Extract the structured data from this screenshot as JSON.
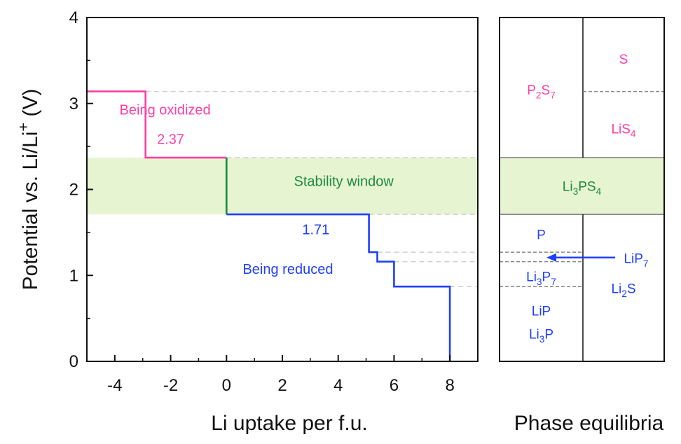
{
  "colors": {
    "oxidized": "#ff3fa4",
    "reduced": "#1f3fff",
    "stability": "#1b8a3e",
    "window_fill": "#e7f4d2",
    "guide_dash": "#cfcfcf",
    "phase_dash": "#888888"
  },
  "chart_data": [
    {
      "type": "line",
      "xlabel": "Li uptake per f.u.",
      "ylabel": "Potential vs. Li/Li+ (V)",
      "xlim": [
        -5,
        9
      ],
      "ylim": [
        0,
        4
      ],
      "xticks": [
        -4,
        -2,
        0,
        2,
        4,
        6,
        8
      ],
      "yticks": [
        0,
        1,
        2,
        3,
        4
      ],
      "grid": false,
      "series": [
        {
          "key": "oxidized",
          "x": [
            -5,
            -2.9,
            -2.9,
            0,
            0
          ],
          "y": [
            3.14,
            3.14,
            2.37,
            2.37,
            2.37
          ]
        },
        {
          "key": "stability",
          "x": [
            0,
            0
          ],
          "y": [
            2.37,
            1.71
          ]
        },
        {
          "key": "reduced",
          "x": [
            0,
            5.1,
            5.1,
            5.4,
            5.4,
            6.0,
            6.0,
            8.0,
            8.0
          ],
          "y": [
            1.71,
            1.71,
            1.27,
            1.27,
            1.16,
            1.16,
            0.87,
            0.87,
            0.0
          ]
        }
      ],
      "stability_window": [
        1.71,
        2.37
      ],
      "guide_levels": [
        {
          "y": 3.14,
          "from_x": -2.9
        },
        {
          "y": 2.37,
          "from_x": 0
        },
        {
          "y": 1.71,
          "from_x": 5.1
        },
        {
          "y": 1.27,
          "from_x": 5.4
        },
        {
          "y": 1.16,
          "from_x": 6.0
        },
        {
          "y": 0.87,
          "from_x": 8.0
        }
      ],
      "annotations": [
        {
          "text": "Being oxidized",
          "x": -2.2,
          "y": 2.87,
          "color": "oxidized"
        },
        {
          "text": "2.37",
          "x": -2.0,
          "y": 2.53,
          "color": "oxidized"
        },
        {
          "text": "Stability window",
          "x": 4.2,
          "y": 2.04,
          "color": "stability"
        },
        {
          "text": "1.71",
          "x": 3.2,
          "y": 1.48,
          "color": "reduced"
        },
        {
          "text": "Being reduced",
          "x": 2.2,
          "y": 1.02,
          "color": "reduced"
        }
      ]
    },
    {
      "type": "table",
      "title": "Phase equilibria",
      "ylim": [
        0,
        4
      ],
      "stability_window": [
        1.71,
        2.37
      ],
      "phase_boundaries": [
        3.14,
        1.27,
        1.16,
        0.87
      ],
      "phases": [
        {
          "name": "S",
          "column": "right",
          "y": 3.52,
          "color": "oxidized"
        },
        {
          "name": "P2S7",
          "column": "left",
          "y": 3.16,
          "color": "oxidized"
        },
        {
          "name": "LiS4",
          "column": "right",
          "y": 2.71,
          "color": "oxidized"
        },
        {
          "name": "Li3PS4",
          "column": "center",
          "y": 2.04,
          "color": "stability"
        },
        {
          "name": "P",
          "column": "left",
          "y": 1.48,
          "color": "reduced"
        },
        {
          "name": "LiP7",
          "column": "right",
          "y": 1.2,
          "color": "reduced",
          "arrow_to": "left"
        },
        {
          "name": "Li3P7",
          "column": "left",
          "y": 0.99,
          "color": "reduced"
        },
        {
          "name": "Li2S",
          "column": "right",
          "y": 0.85,
          "color": "reduced"
        },
        {
          "name": "LiP",
          "column": "left",
          "y": 0.59,
          "color": "reduced"
        },
        {
          "name": "Li3P",
          "column": "left",
          "y": 0.32,
          "color": "reduced"
        }
      ]
    }
  ]
}
